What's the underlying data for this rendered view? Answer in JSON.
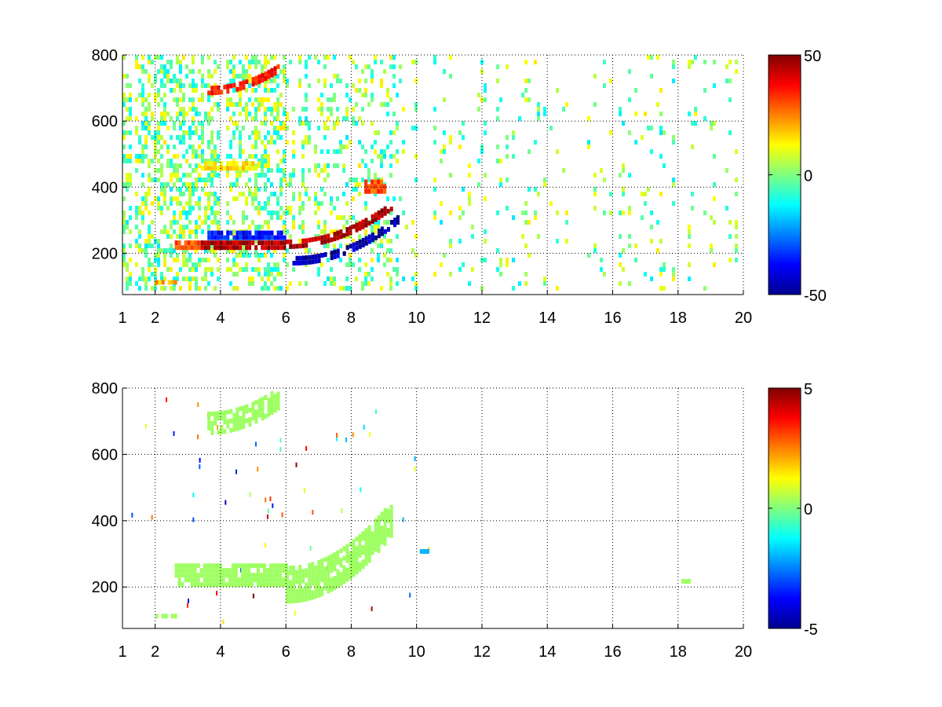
{
  "chart_data": [
    {
      "type": "heatmap",
      "title": "",
      "xlabel": "",
      "ylabel": "",
      "xlim": [
        1,
        20
      ],
      "ylim": [
        75,
        800
      ],
      "x_ticks": [
        1,
        2,
        4,
        6,
        8,
        10,
        12,
        14,
        16,
        18,
        20
      ],
      "y_ticks": [
        200,
        400,
        600,
        800
      ],
      "grid": true,
      "colormap": "jet",
      "color_range": [
        -50,
        50
      ],
      "colorbar_ticks": [
        50,
        0,
        -50
      ],
      "background_color": "#ffffff",
      "features": [
        {
          "x": [
            2.0,
            2.6
          ],
          "y": [
            105,
            115
          ],
          "value": 20
        },
        {
          "x": [
            2.6,
            3.4
          ],
          "y": [
            210,
            225
          ],
          "value": 30
        },
        {
          "x": [
            3.4,
            6.0
          ],
          "y": [
            210,
            225
          ],
          "value": 45
        },
        {
          "x": [
            3.6,
            6.0
          ],
          "y": [
            240,
            255
          ],
          "value": -35
        },
        {
          "x": [
            6.0,
            9.2
          ],
          "y": [
            225,
            340
          ],
          "value": 45,
          "note": "rising curve"
        },
        {
          "x": [
            6.2,
            9.4
          ],
          "y": [
            175,
            300
          ],
          "value": -45,
          "note": "rising curve"
        },
        {
          "x": [
            3.6,
            5.8
          ],
          "y": [
            690,
            760
          ],
          "value": 35,
          "note": "rising curve"
        },
        {
          "x": [
            3.4,
            5.2
          ],
          "y": [
            450,
            475
          ],
          "value": 15
        },
        {
          "x": [
            8.4,
            9.0
          ],
          "y": [
            380,
            420
          ],
          "value": 30
        }
      ]
    },
    {
      "type": "heatmap",
      "title": "",
      "xlabel": "",
      "ylabel": "",
      "xlim": [
        1,
        20
      ],
      "ylim": [
        75,
        800
      ],
      "x_ticks": [
        1,
        2,
        4,
        6,
        8,
        10,
        12,
        14,
        16,
        18,
        20
      ],
      "y_ticks": [
        200,
        400,
        600,
        800
      ],
      "grid": true,
      "colormap": "jet",
      "color_range": [
        -5,
        5
      ],
      "colorbar_ticks": [
        5,
        0,
        -5
      ],
      "background_color": "#ffffff",
      "features": [
        {
          "x": [
            2.0,
            2.6
          ],
          "y": [
            105,
            115
          ],
          "value": 0.3
        },
        {
          "x": [
            2.6,
            6.0
          ],
          "y": [
            200,
            260
          ],
          "value": 0.3
        },
        {
          "x": [
            6.0,
            9.2
          ],
          "y": [
            200,
            400
          ],
          "value": 0.3,
          "note": "rising curve"
        },
        {
          "x": [
            3.6,
            5.8
          ],
          "y": [
            690,
            770
          ],
          "value": 0.3,
          "note": "rising curve"
        },
        {
          "x": [
            10.1,
            10.3
          ],
          "y": [
            300,
            310
          ],
          "value": -2
        },
        {
          "x": [
            18.1,
            18.3
          ],
          "y": [
            210,
            220
          ],
          "value": 0.3
        }
      ]
    }
  ]
}
